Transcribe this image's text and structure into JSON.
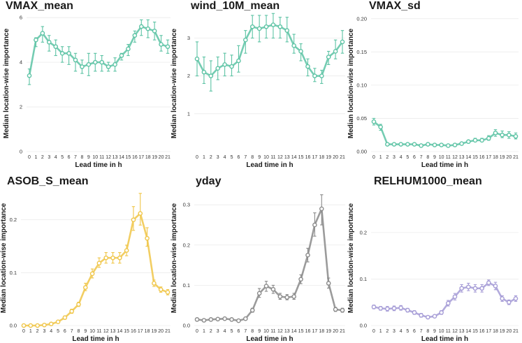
{
  "chart_data": [
    {
      "type": "line",
      "title": "VMAX_mean",
      "xlabel": "Lead time in h",
      "ylabel": "Median location-wise importance",
      "color": "#5cc3a4",
      "x": [
        0,
        1,
        2,
        3,
        4,
        5,
        6,
        7,
        8,
        9,
        10,
        11,
        12,
        13,
        14,
        15,
        16,
        17,
        18,
        19,
        20,
        21
      ],
      "x_tick_labels": [
        "0",
        "1",
        "2",
        "3",
        "4",
        "5",
        "6",
        "7",
        "8",
        "9",
        "10",
        "11",
        "12",
        "13",
        "14",
        "15",
        "16",
        "17",
        "18",
        "19",
        "20",
        "21"
      ],
      "ylim": [
        0,
        6.1
      ],
      "y_ticks": [
        0,
        2,
        4,
        6
      ],
      "y_tick_labels": [
        "0",
        "2",
        "4",
        "6"
      ],
      "values": [
        3.4,
        5.0,
        5.3,
        4.9,
        4.7,
        4.4,
        4.4,
        4.1,
        3.8,
        3.9,
        4.0,
        4.0,
        3.8,
        3.9,
        4.3,
        4.6,
        5.2,
        5.6,
        5.5,
        5.4,
        4.8,
        4.7
      ],
      "error_low": [
        3.0,
        4.7,
        4.9,
        4.5,
        4.3,
        4.0,
        3.9,
        3.6,
        3.5,
        3.4,
        3.6,
        3.6,
        3.6,
        3.6,
        4.1,
        4.3,
        4.9,
        5.2,
        5.1,
        5.0,
        4.5,
        4.4
      ],
      "error_high": [
        3.7,
        5.1,
        5.6,
        5.2,
        5.0,
        4.7,
        4.7,
        4.4,
        4.1,
        4.4,
        4.4,
        4.3,
        4.0,
        4.2,
        4.4,
        4.8,
        5.4,
        5.9,
        5.9,
        5.8,
        5.2,
        5.0
      ]
    },
    {
      "type": "line",
      "title": "wind_10M_mean",
      "xlabel": "Lead time in h",
      "ylabel": "Median location-wise importance",
      "color": "#5cc3a4",
      "x": [
        0,
        1,
        2,
        3,
        4,
        5,
        6,
        7,
        8,
        9,
        10,
        11,
        12,
        13,
        14,
        15,
        16,
        17,
        18,
        19,
        20,
        21
      ],
      "x_tick_labels": [
        "0",
        "1",
        "2",
        "3",
        "4",
        "5",
        "6",
        "7",
        "8",
        "9",
        "10",
        "11",
        "12",
        "13",
        "14",
        "15",
        "16",
        "17",
        "18",
        "19",
        "20",
        "21"
      ],
      "ylim": [
        0,
        3.6
      ],
      "y_ticks": [
        1,
        2,
        3
      ],
      "y_tick_labels": [
        "1",
        "2",
        "3"
      ],
      "values": [
        2.45,
        2.1,
        2.0,
        2.2,
        2.3,
        2.25,
        2.4,
        2.95,
        3.3,
        3.25,
        3.3,
        3.35,
        3.3,
        3.2,
        2.8,
        2.65,
        2.25,
        2.0,
        2.0,
        2.5,
        2.65,
        2.9
      ],
      "error_low": [
        2.0,
        1.8,
        1.6,
        1.9,
        2.0,
        2.0,
        2.1,
        2.6,
        3.0,
        2.9,
        3.0,
        3.0,
        3.0,
        2.9,
        2.6,
        2.4,
        2.0,
        1.85,
        1.8,
        2.3,
        2.45,
        2.6
      ],
      "error_high": [
        2.9,
        2.5,
        2.4,
        2.5,
        2.6,
        2.55,
        2.8,
        3.2,
        3.6,
        3.6,
        3.6,
        3.65,
        3.55,
        3.55,
        3.1,
        2.85,
        2.45,
        2.2,
        2.15,
        2.65,
        2.95,
        3.2
      ]
    },
    {
      "type": "line",
      "title": "VMAX_sd",
      "xlabel": "Lead time in h",
      "ylabel": "Median location-wise importance",
      "color": "#5cc3a4",
      "x": [
        0,
        1,
        2,
        3,
        4,
        5,
        6,
        7,
        8,
        9,
        10,
        11,
        12,
        13,
        14,
        15,
        16,
        17,
        18,
        19,
        20,
        21
      ],
      "x_tick_labels": [
        "0",
        "1",
        "2",
        "3",
        "4",
        "5",
        "6",
        "7",
        "8",
        "9",
        "10",
        "11",
        "12",
        "13",
        "14",
        "15",
        "16",
        "17",
        "18",
        "19",
        "20",
        "21"
      ],
      "ylim": [
        0,
        0.205
      ],
      "y_ticks": [
        0.0,
        0.05,
        0.1,
        0.15,
        0.2
      ],
      "y_tick_labels": [
        "0.00",
        "0.05",
        "0.10",
        "0.15",
        "0.20"
      ],
      "values": [
        0.045,
        0.037,
        0.011,
        0.011,
        0.011,
        0.011,
        0.011,
        0.009,
        0.011,
        0.01,
        0.01,
        0.009,
        0.01,
        0.012,
        0.015,
        0.017,
        0.017,
        0.02,
        0.028,
        0.025,
        0.025,
        0.023
      ],
      "error_low": [
        0.04,
        0.032,
        0.009,
        0.009,
        0.009,
        0.009,
        0.009,
        0.008,
        0.009,
        0.009,
        0.009,
        0.008,
        0.009,
        0.01,
        0.013,
        0.015,
        0.015,
        0.017,
        0.023,
        0.021,
        0.02,
        0.019
      ],
      "error_high": [
        0.05,
        0.041,
        0.013,
        0.013,
        0.013,
        0.013,
        0.013,
        0.011,
        0.013,
        0.012,
        0.012,
        0.011,
        0.012,
        0.014,
        0.017,
        0.02,
        0.02,
        0.024,
        0.033,
        0.031,
        0.03,
        0.028
      ]
    },
    {
      "type": "line",
      "title": "ASOB_S_mean",
      "xlabel": "Lead time in h",
      "ylabel": "Median location-wise importance",
      "color": "#f0c648",
      "x": [
        0,
        1,
        2,
        3,
        4,
        5,
        6,
        7,
        8,
        9,
        10,
        11,
        12,
        13,
        14,
        15,
        16,
        17,
        18,
        19,
        20,
        21
      ],
      "x_tick_labels": [
        "0",
        "1",
        "2",
        "3",
        "4",
        "5",
        "6",
        "7",
        "8",
        "9",
        "10",
        "11",
        "12",
        "13",
        "14",
        "15",
        "16",
        "17",
        "18",
        "19",
        "20",
        "21"
      ],
      "ylim": [
        0,
        0.255
      ],
      "y_ticks": [
        0.0,
        0.1,
        0.2
      ],
      "y_tick_labels": [
        "0.0",
        "0.1",
        "0.2"
      ],
      "values": [
        0.0,
        0.0,
        0.0,
        0.001,
        0.003,
        0.007,
        0.015,
        0.027,
        0.04,
        0.072,
        0.098,
        0.118,
        0.128,
        0.128,
        0.128,
        0.142,
        0.2,
        0.212,
        0.165,
        0.08,
        0.068,
        0.063
      ],
      "error_low": [
        0.0,
        0.0,
        0.0,
        0.0,
        0.002,
        0.005,
        0.012,
        0.023,
        0.036,
        0.066,
        0.09,
        0.11,
        0.118,
        0.118,
        0.118,
        0.132,
        0.18,
        0.19,
        0.15,
        0.074,
        0.063,
        0.058
      ],
      "error_high": [
        0.001,
        0.001,
        0.001,
        0.002,
        0.005,
        0.009,
        0.018,
        0.031,
        0.044,
        0.08,
        0.107,
        0.128,
        0.138,
        0.138,
        0.138,
        0.152,
        0.225,
        0.25,
        0.185,
        0.086,
        0.073,
        0.068
      ]
    },
    {
      "type": "line",
      "title": "yday",
      "xlabel": "Lead time in h",
      "ylabel": "Median location-wise importance",
      "color": "#8a8a8a",
      "x": [
        0,
        1,
        2,
        3,
        4,
        5,
        6,
        7,
        8,
        9,
        10,
        11,
        12,
        13,
        14,
        15,
        16,
        17,
        18,
        19,
        20,
        21
      ],
      "x_tick_labels": [
        "0",
        "1",
        "2",
        "3",
        "4",
        "5",
        "6",
        "7",
        "8",
        "9",
        "10",
        "11",
        "12",
        "13",
        "14",
        "15",
        "16",
        "17",
        "18",
        "19",
        "20",
        "21"
      ],
      "ylim": [
        0,
        0.335
      ],
      "y_ticks": [
        0.0,
        0.1,
        0.2,
        0.3
      ],
      "y_tick_labels": [
        "0.0",
        "0.1",
        "0.2",
        "0.3"
      ],
      "values": [
        0.015,
        0.013,
        0.015,
        0.016,
        0.017,
        0.015,
        0.012,
        0.017,
        0.038,
        0.08,
        0.098,
        0.09,
        0.072,
        0.07,
        0.072,
        0.115,
        0.175,
        0.25,
        0.29,
        0.105,
        0.04,
        0.038
      ],
      "error_low": [
        0.012,
        0.01,
        0.012,
        0.013,
        0.014,
        0.012,
        0.01,
        0.014,
        0.033,
        0.07,
        0.085,
        0.08,
        0.065,
        0.064,
        0.065,
        0.104,
        0.158,
        0.222,
        0.25,
        0.093,
        0.035,
        0.033
      ],
      "error_high": [
        0.018,
        0.016,
        0.018,
        0.019,
        0.02,
        0.018,
        0.014,
        0.02,
        0.043,
        0.092,
        0.11,
        0.1,
        0.08,
        0.077,
        0.08,
        0.126,
        0.192,
        0.28,
        0.325,
        0.118,
        0.045,
        0.043
      ]
    },
    {
      "type": "line",
      "title": "RELHUM1000_mean",
      "xlabel": "Lead time in h",
      "ylabel": "Median location-wise importance",
      "color": "#a59bd6",
      "x": [
        0,
        1,
        2,
        3,
        4,
        5,
        6,
        7,
        8,
        9,
        10,
        11,
        12,
        13,
        14,
        15,
        16,
        17,
        18,
        19,
        20,
        21
      ],
      "x_tick_labels": [
        "0",
        "1",
        "2",
        "3",
        "4",
        "5",
        "6",
        "7",
        "8",
        "9",
        "10",
        "11",
        "12",
        "13",
        "14",
        "15",
        "16",
        "17",
        "18",
        "19",
        "20",
        "21"
      ],
      "ylim": [
        0,
        0.29
      ],
      "y_ticks": [
        0.0,
        0.1,
        0.2
      ],
      "y_tick_labels": [
        "0.0",
        "0.1",
        "0.2"
      ],
      "values": [
        0.04,
        0.037,
        0.036,
        0.037,
        0.038,
        0.033,
        0.028,
        0.022,
        0.018,
        0.02,
        0.028,
        0.048,
        0.062,
        0.08,
        0.083,
        0.08,
        0.08,
        0.092,
        0.085,
        0.058,
        0.05,
        0.058
      ],
      "error_low": [
        0.036,
        0.033,
        0.031,
        0.032,
        0.033,
        0.029,
        0.024,
        0.018,
        0.015,
        0.017,
        0.024,
        0.042,
        0.055,
        0.072,
        0.075,
        0.072,
        0.072,
        0.086,
        0.077,
        0.052,
        0.045,
        0.052
      ],
      "error_high": [
        0.044,
        0.041,
        0.041,
        0.042,
        0.043,
        0.037,
        0.032,
        0.026,
        0.021,
        0.023,
        0.032,
        0.054,
        0.069,
        0.088,
        0.091,
        0.088,
        0.088,
        0.098,
        0.093,
        0.064,
        0.055,
        0.064
      ]
    }
  ]
}
